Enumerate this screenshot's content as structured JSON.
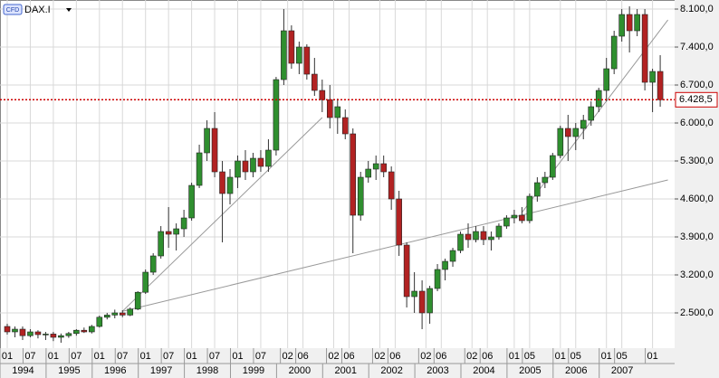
{
  "chart_data": {
    "type": "candlestick",
    "symbol_badge": "CFD",
    "symbol": "DAX.I",
    "x": [
      "1994-01",
      "1994-03",
      "1994-05",
      "1994-07",
      "1994-09",
      "1994-11",
      "1995-01",
      "1995-03",
      "1995-05",
      "1995-07",
      "1995-09",
      "1995-11",
      "1996-01",
      "1996-03",
      "1996-05",
      "1996-07",
      "1996-09",
      "1996-11",
      "1997-01",
      "1997-03",
      "1997-05",
      "1997-07",
      "1997-09",
      "1997-11",
      "1998-01",
      "1998-03",
      "1998-05",
      "1998-07",
      "1998-09",
      "1998-11",
      "1999-01",
      "1999-03",
      "1999-05",
      "1999-07",
      "1999-09",
      "1999-11",
      "2000-01",
      "2000-03",
      "2000-05",
      "2000-07",
      "2000-09",
      "2000-11",
      "2001-01",
      "2001-03",
      "2001-05",
      "2001-07",
      "2001-09",
      "2001-11",
      "2002-01",
      "2002-03",
      "2002-05",
      "2002-07",
      "2002-09",
      "2002-11",
      "2003-01",
      "2003-03",
      "2003-05",
      "2003-07",
      "2003-09",
      "2003-11",
      "2004-01",
      "2004-03",
      "2004-05",
      "2004-07",
      "2004-09",
      "2004-11",
      "2005-01",
      "2005-03",
      "2005-05",
      "2005-07",
      "2005-09",
      "2005-11",
      "2006-01",
      "2006-03",
      "2006-05",
      "2006-07",
      "2006-09",
      "2006-11",
      "2007-01",
      "2007-03",
      "2007-05",
      "2007-07",
      "2007-09",
      "2007-11",
      "2008-01",
      "2008-03"
    ],
    "open": [
      2250,
      2150,
      2200,
      2080,
      2150,
      2100,
      2110,
      2050,
      2080,
      2120,
      2180,
      2150,
      2250,
      2420,
      2460,
      2500,
      2460,
      2570,
      2880,
      3250,
      3550,
      4000,
      3950,
      4050,
      4250,
      4850,
      5450,
      5900,
      5100,
      4700,
      5000,
      5300,
      5100,
      5350,
      5200,
      5500,
      6800,
      7700,
      7100,
      7400,
      6900,
      6600,
      6430,
      6100,
      6100,
      5800,
      4300,
      5000,
      5150,
      5250,
      5100,
      4600,
      3750,
      2800,
      2900,
      2500,
      2950,
      3300,
      3450,
      3650,
      3950,
      3850,
      4000,
      3850,
      3900,
      4100,
      4250,
      4300,
      4200,
      4650,
      4900,
      5000,
      5400,
      5900,
      5750,
      5900,
      6050,
      6300,
      6600,
      7000,
      7600,
      8000,
      7700,
      8000,
      6750,
      6950
    ],
    "high": [
      2300,
      2250,
      2250,
      2200,
      2180,
      2150,
      2150,
      2120,
      2150,
      2200,
      2230,
      2280,
      2450,
      2500,
      2560,
      2550,
      2600,
      2900,
      3300,
      3600,
      4100,
      4450,
      4150,
      4400,
      4900,
      5600,
      6050,
      6200,
      5300,
      5150,
      5400,
      5500,
      5450,
      5500,
      5700,
      6850,
      8100,
      7800,
      7500,
      7450,
      7200,
      6800,
      6700,
      6450,
      6250,
      5900,
      5100,
      5300,
      5400,
      5400,
      5200,
      4750,
      3800,
      3250,
      3100,
      3000,
      3400,
      3500,
      3700,
      4000,
      4150,
      4100,
      4100,
      4000,
      4150,
      4300,
      4400,
      4450,
      4700,
      5000,
      5100,
      5450,
      5950,
      6150,
      6000,
      6150,
      6400,
      6650,
      7200,
      7700,
      8100,
      8150,
      8100,
      8100,
      7000,
      7250
    ],
    "low": [
      2100,
      2050,
      2000,
      2050,
      2030,
      2000,
      1980,
      1950,
      2040,
      2080,
      2130,
      2120,
      2230,
      2380,
      2400,
      2420,
      2440,
      2550,
      2850,
      3200,
      3500,
      3700,
      3650,
      3900,
      4200,
      4800,
      5300,
      5000,
      3800,
      4500,
      4800,
      4950,
      5000,
      5100,
      5100,
      5400,
      6700,
      7000,
      6900,
      6800,
      6500,
      6200,
      5900,
      5800,
      5700,
      3600,
      4200,
      4900,
      4950,
      5000,
      4400,
      3550,
      2600,
      2500,
      2200,
      2300,
      2900,
      3100,
      3350,
      3600,
      3700,
      3800,
      3750,
      3650,
      3850,
      4050,
      4150,
      4150,
      4150,
      4550,
      4800,
      4950,
      5350,
      5300,
      5500,
      5700,
      5950,
      6200,
      6400,
      6900,
      7500,
      7300,
      7600,
      6600,
      6200,
      6300
    ],
    "close": [
      2150,
      2200,
      2080,
      2150,
      2100,
      2110,
      2050,
      2080,
      2120,
      2180,
      2150,
      2250,
      2420,
      2460,
      2500,
      2460,
      2570,
      2880,
      3250,
      3550,
      4000,
      3950,
      4050,
      4250,
      4850,
      5450,
      5900,
      5100,
      4700,
      5000,
      5300,
      5100,
      5350,
      5200,
      5500,
      6800,
      7700,
      7100,
      7400,
      6900,
      6600,
      6430,
      6100,
      6300,
      5800,
      4300,
      5000,
      5150,
      5250,
      5100,
      4600,
      3750,
      2800,
      2900,
      2500,
      2950,
      3300,
      3450,
      3650,
      3950,
      3850,
      4000,
      3850,
      3900,
      4100,
      4250,
      4300,
      4200,
      4650,
      4900,
      5000,
      5400,
      5900,
      5750,
      5900,
      6050,
      6300,
      6600,
      7000,
      7600,
      8000,
      7700,
      8000,
      6750,
      6950,
      6428.5
    ],
    "up_color": "#2f8f2f",
    "down_color": "#b22222",
    "ylim": [
      1850,
      8267
    ],
    "yticks": [
      {
        "value": 2500,
        "label": "2.500,0"
      },
      {
        "value": 3200,
        "label": "3.200,0"
      },
      {
        "value": 3900,
        "label": "3.900,0"
      },
      {
        "value": 4600,
        "label": "4.600,0"
      },
      {
        "value": 5300,
        "label": "5.300,0"
      },
      {
        "value": 6000,
        "label": "6.000,0"
      },
      {
        "value": 6700,
        "label": "6.700,0"
      },
      {
        "value": 7400,
        "label": "7.400,0"
      },
      {
        "value": 8100,
        "label": "8.100,0"
      }
    ],
    "xticks": [
      {
        "value": "1994-01",
        "label": "01"
      },
      {
        "value": "1994-07",
        "label": "07"
      },
      {
        "value": "1995-01",
        "label": "01"
      },
      {
        "value": "1995-07",
        "label": "07"
      },
      {
        "value": "1996-01",
        "label": "01"
      },
      {
        "value": "1996-07",
        "label": "07"
      },
      {
        "value": "1997-01",
        "label": "01"
      },
      {
        "value": "1997-07",
        "label": "07"
      },
      {
        "value": "1998-01",
        "label": "01"
      },
      {
        "value": "1998-07",
        "label": "07"
      },
      {
        "value": "1999-01",
        "label": "01"
      },
      {
        "value": "1999-07",
        "label": "07"
      },
      {
        "value": "2000-02",
        "label": "02"
      },
      {
        "value": "2000-06",
        "label": "06"
      },
      {
        "value": "2001-02",
        "label": "02"
      },
      {
        "value": "2001-06",
        "label": "06"
      },
      {
        "value": "2002-02",
        "label": "02"
      },
      {
        "value": "2002-06",
        "label": "06"
      },
      {
        "value": "2003-02",
        "label": "02"
      },
      {
        "value": "2003-06",
        "label": "06"
      },
      {
        "value": "2004-02",
        "label": "02"
      },
      {
        "value": "2004-06",
        "label": "06"
      },
      {
        "value": "2005-01",
        "label": "01"
      },
      {
        "value": "2005-05",
        "label": "05"
      },
      {
        "value": "2006-01",
        "label": "01"
      },
      {
        "value": "2006-05",
        "label": "05"
      },
      {
        "value": "2007-01",
        "label": "01"
      },
      {
        "value": "2007-05",
        "label": "05"
      },
      {
        "value": "2008-01",
        "label": "01"
      }
    ],
    "years": [
      "1994",
      "1995",
      "1996",
      "1997",
      "1998",
      "1999",
      "2000",
      "2001",
      "2002",
      "2003",
      "2004",
      "2005",
      "2006",
      "2007"
    ],
    "grid": true,
    "last_price": {
      "value": 6428.5,
      "label": "6.428,5",
      "color": "#cc0000"
    },
    "trendlines": [
      {
        "start": [
          "1996-07",
          2530
        ],
        "end": [
          "2000-11",
          6100
        ]
      },
      {
        "start": [
          "1996-07",
          2530
        ],
        "end": [
          "2008-05",
          4950
        ]
      },
      {
        "start": [
          "2005-03",
          4350
        ],
        "end": [
          "2008-05",
          7900
        ]
      }
    ]
  }
}
